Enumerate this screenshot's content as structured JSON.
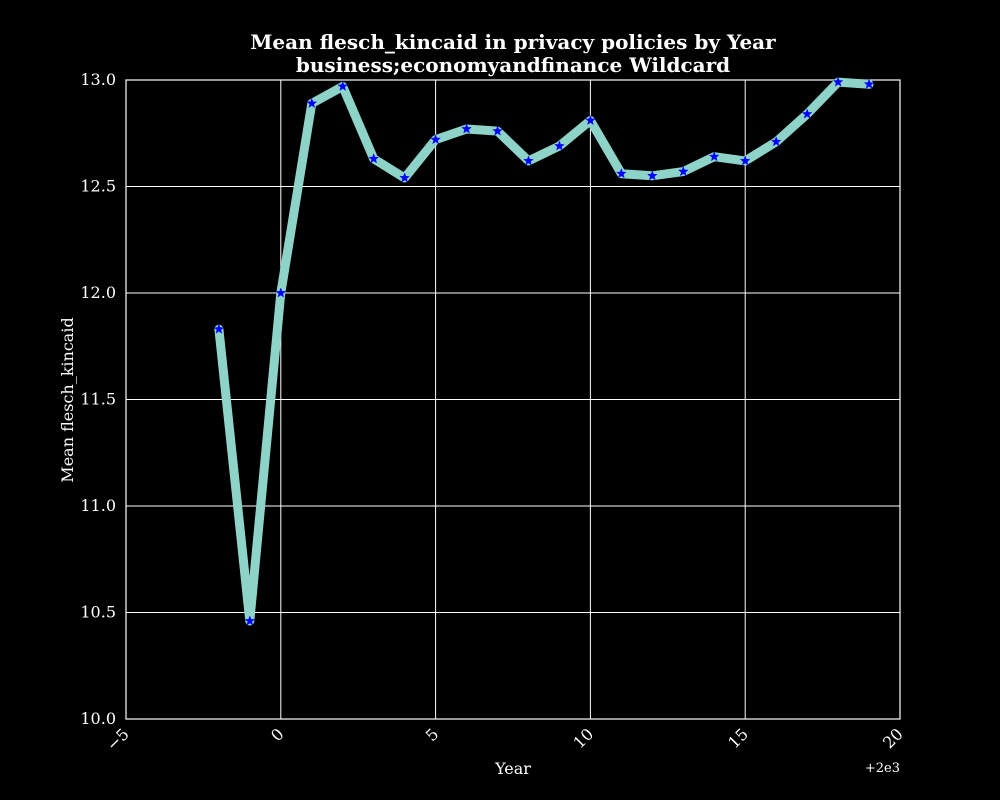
{
  "colors": {
    "background": "#000000",
    "text": "#ffffff",
    "grid": "#ffffff",
    "line": "#8dd3c7",
    "marker": "#0000ff"
  },
  "chart_data": {
    "type": "line",
    "title": "Mean flesch_kincaid in privacy policies by Year",
    "subtitle": "business;economyandfinance Wildcard",
    "xlabel": "Year",
    "ylabel": "Mean flesch_kincaid",
    "x_offset_label": "+2e3",
    "xlim": [
      -5,
      20
    ],
    "ylim": [
      10.0,
      13.0
    ],
    "x_ticks": [
      -5,
      0,
      5,
      10,
      15,
      20
    ],
    "x_tick_labels": [
      "−5",
      "0",
      "5",
      "10",
      "15",
      "20"
    ],
    "y_ticks": [
      10.0,
      10.5,
      11.0,
      11.5,
      12.0,
      12.5,
      13.0
    ],
    "y_tick_labels": [
      "10.0",
      "10.5",
      "11.0",
      "11.5",
      "12.0",
      "12.5",
      "13.0"
    ],
    "grid": true,
    "marker": "star",
    "series": [
      {
        "x": [
          -2,
          -1,
          0,
          1,
          2,
          3,
          4,
          5,
          6,
          7,
          8,
          9,
          10,
          11,
          12,
          13,
          14,
          15,
          16,
          17,
          18,
          19
        ],
        "y": [
          11.83,
          10.46,
          12.0,
          12.89,
          12.97,
          12.63,
          12.54,
          12.72,
          12.77,
          12.76,
          12.62,
          12.69,
          12.81,
          12.56,
          12.55,
          12.57,
          12.64,
          12.62,
          12.71,
          12.84,
          12.99,
          12.98
        ]
      }
    ]
  }
}
